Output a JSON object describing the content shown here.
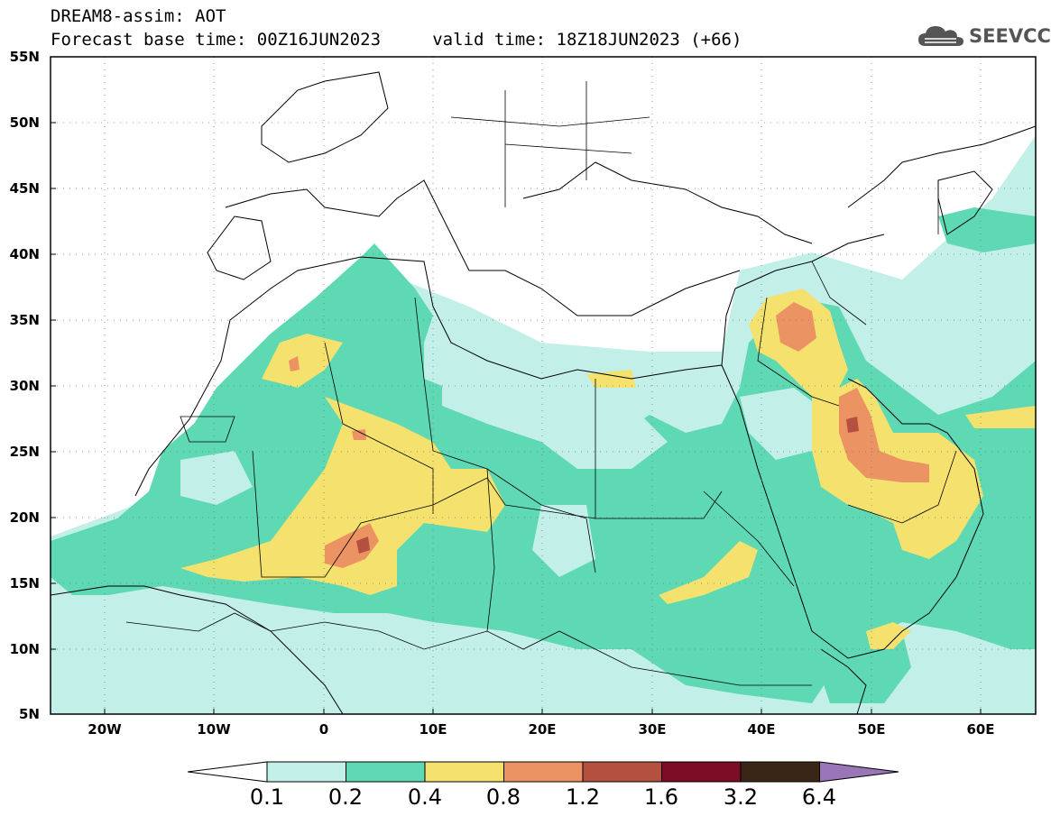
{
  "header": {
    "title_line1": "DREAM8-assim: AOT",
    "title_line2": "Forecast base time: 00Z16JUN2023     valid time: 18Z18JUN2023 (+66)"
  },
  "logo": {
    "icon": "cloud-icon",
    "text": "SEEVCCC",
    "color": "#555555"
  },
  "map": {
    "lon_range": [
      -25,
      65
    ],
    "lat_range": [
      5,
      55
    ],
    "lat_ticks": [
      "55N",
      "50N",
      "45N",
      "40N",
      "35N",
      "30N",
      "25N",
      "20N",
      "15N",
      "10N",
      "5N"
    ],
    "lon_ticks": [
      "20W",
      "10W",
      "0",
      "10E",
      "20E",
      "30E",
      "40E",
      "50E",
      "60E"
    ],
    "grid": "dotted"
  },
  "colorbar": {
    "labels": [
      "0.1",
      "0.2",
      "0.4",
      "0.8",
      "1.2",
      "1.6",
      "3.2",
      "6.4"
    ],
    "colors": [
      "#c3efe9",
      "#5ed9b4",
      "#f5e26e",
      "#ec9364",
      "#b35040",
      "#7d0d27",
      "#3a2616",
      "#9a75b8"
    ],
    "under_color": "#ffffff"
  }
}
